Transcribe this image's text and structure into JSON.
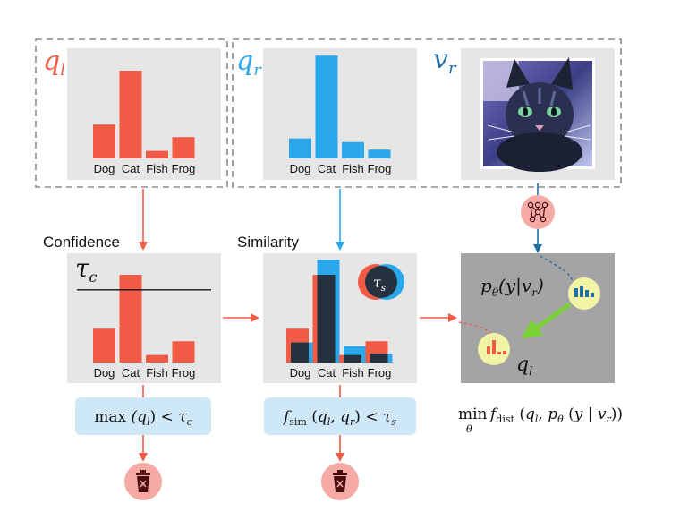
{
  "colors": {
    "red": "#f15a45",
    "blue": "#2aa7ea",
    "dark_blue": "#1f6fa8",
    "navy": "#26313f",
    "panel": "#e6e6e6",
    "dark_panel": "#a4a4a4",
    "formula_bg": "#cfe8f8",
    "trash_bg": "#f5aaa6",
    "trash_icon": "#4a0e0e",
    "node_bg": "#f2f3a5"
  },
  "labels": {
    "ql": "q",
    "ql_sub": "l",
    "qr": "q",
    "qr_sub": "r",
    "vr": "v",
    "vr_sub": "r",
    "confidence": "Confidence",
    "similarity": "Similarity",
    "tau_c": "τ",
    "tau_c_sub": "c",
    "tau_s": "τ",
    "tau_s_sub": "s",
    "p_theta": "pθ(y|vr)",
    "ql_node": "ql"
  },
  "formulas": {
    "confidence": "max(ql) < τc",
    "similarity": "fsim(ql, qr) < τs",
    "objective": "min_θ fdist (ql, pθ(y | vr))"
  },
  "chart_data": [
    {
      "type": "bar",
      "categories": [
        "Dog",
        "Cat",
        "Fish",
        "Frog"
      ],
      "series": [
        {
          "name": "q_l",
          "values": [
            0.27,
            0.7,
            0.06,
            0.17
          ]
        }
      ],
      "ylim": [
        0,
        1
      ]
    },
    {
      "type": "bar",
      "categories": [
        "Dog",
        "Cat",
        "Fish",
        "Frog"
      ],
      "series": [
        {
          "name": "q_r",
          "values": [
            0.16,
            0.82,
            0.13,
            0.07
          ]
        }
      ],
      "ylim": [
        0,
        1
      ]
    },
    {
      "type": "bar",
      "categories": [
        "Dog",
        "Cat",
        "Fish",
        "Frog"
      ],
      "series": [
        {
          "name": "q_l",
          "values": [
            0.27,
            0.7,
            0.06,
            0.17
          ]
        }
      ],
      "threshold": 0.58,
      "ylim": [
        0,
        1
      ]
    },
    {
      "type": "bar",
      "categories": [
        "Dog",
        "Cat",
        "Fish",
        "Frog"
      ],
      "series": [
        {
          "name": "q_l",
          "values": [
            0.27,
            0.7,
            0.06,
            0.17
          ]
        },
        {
          "name": "q_r",
          "values": [
            0.16,
            0.82,
            0.13,
            0.07
          ]
        }
      ],
      "ylim": [
        0,
        1
      ]
    }
  ]
}
